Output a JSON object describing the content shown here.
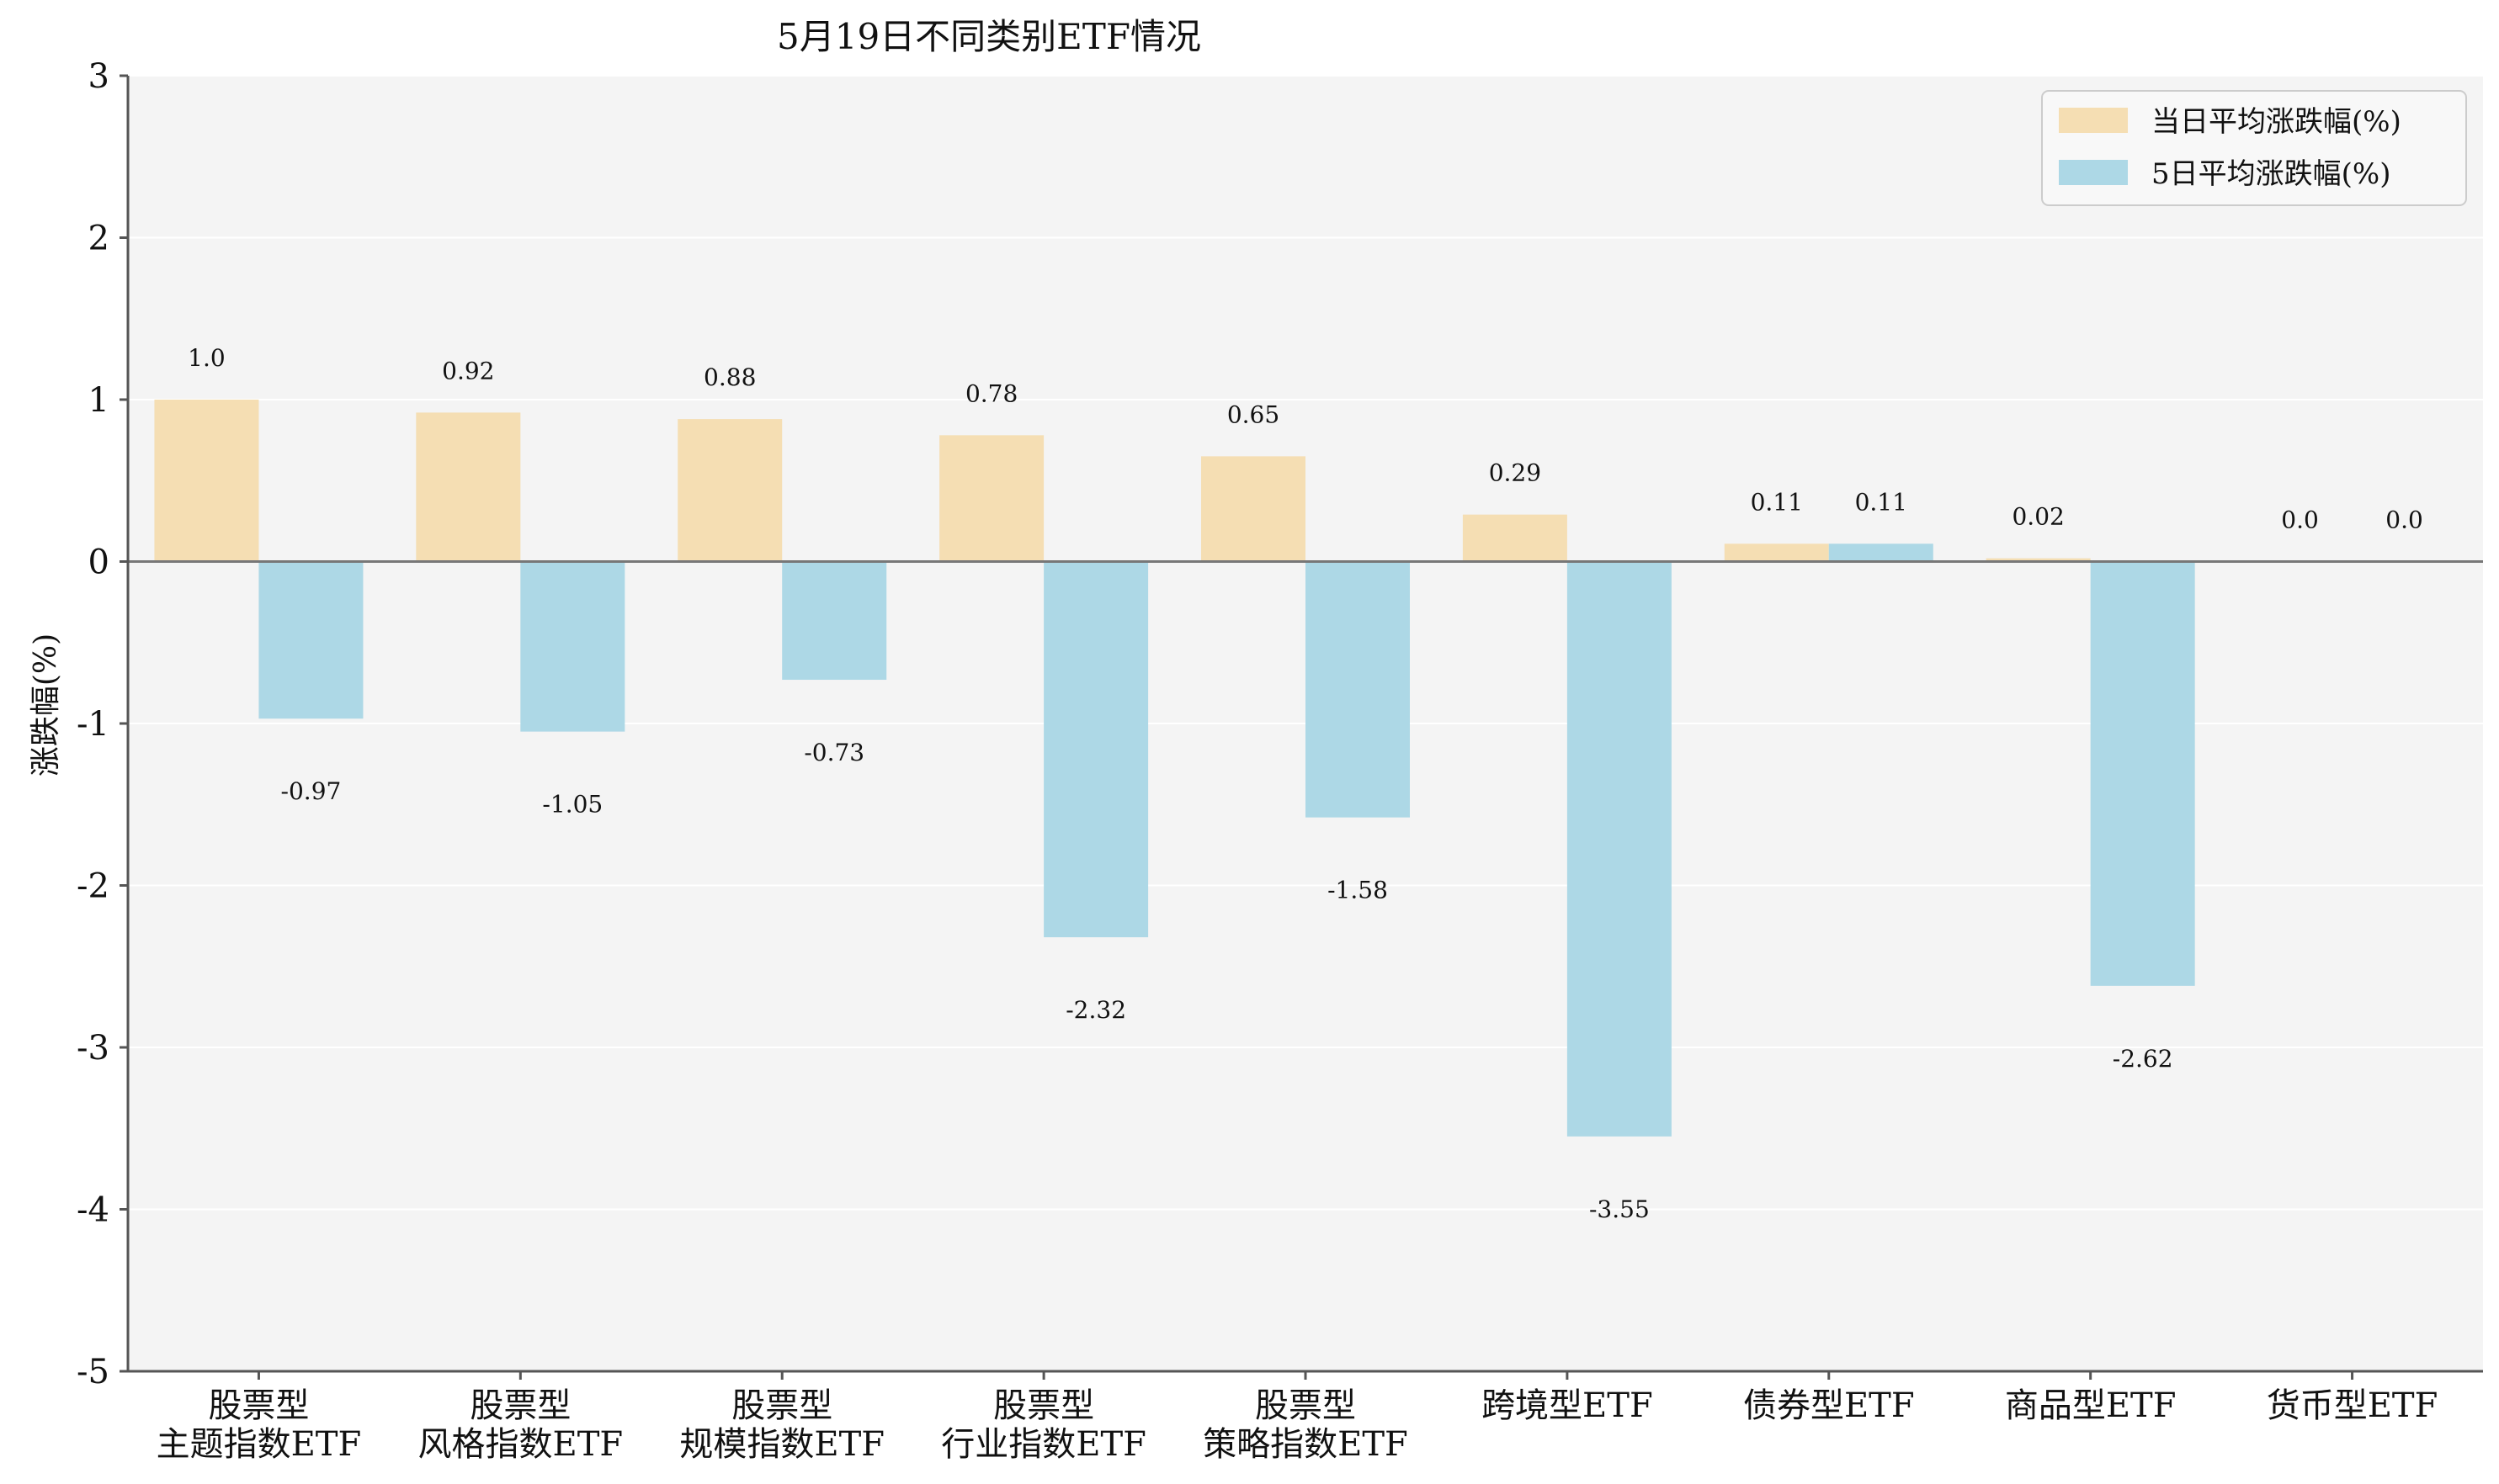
{
  "chart_data": {
    "type": "bar",
    "title": "5月19日不同类别ETF情况",
    "xlabel": "",
    "ylabel": "涨跌幅(%)",
    "ylim": [
      -5,
      3
    ],
    "yticks": [
      3,
      2,
      1,
      0,
      -1,
      -2,
      -3,
      -4,
      -5
    ],
    "grid": true,
    "legend_position": "top-right",
    "categories": [
      [
        "股票型",
        "主题指数ETF"
      ],
      [
        "股票型",
        "风格指数ETF"
      ],
      [
        "股票型",
        "规模指数ETF"
      ],
      [
        "股票型",
        "行业指数ETF"
      ],
      [
        "股票型",
        "策略指数ETF"
      ],
      [
        "跨境型ETF"
      ],
      [
        "债券型ETF"
      ],
      [
        "商品型ETF"
      ],
      [
        "货币型ETF"
      ]
    ],
    "series": [
      {
        "name": "当日平均涨跌幅(%)",
        "color": "#F5DEB3",
        "values": [
          1.0,
          0.92,
          0.88,
          0.78,
          0.65,
          0.29,
          0.11,
          0.02,
          0.0
        ],
        "labels": [
          "1.0",
          "0.92",
          "0.88",
          "0.78",
          "0.65",
          "0.29",
          "0.11",
          "0.02",
          "0.0"
        ]
      },
      {
        "name": "5日平均涨跌幅(%)",
        "color": "#ADD8E6",
        "values": [
          -0.97,
          -1.05,
          -0.73,
          -2.32,
          -1.58,
          -3.55,
          0.11,
          -2.62,
          0.0
        ],
        "labels": [
          "-0.97",
          "-1.05",
          "-0.73",
          "-2.32",
          "-1.58",
          "-3.55",
          "0.11",
          "-2.62",
          "0.0"
        ]
      }
    ],
    "colors": {
      "plot_background": "#F4F4F4",
      "grid": "#FFFFFF",
      "axis": "#555555",
      "zero_line": "#777777"
    }
  }
}
